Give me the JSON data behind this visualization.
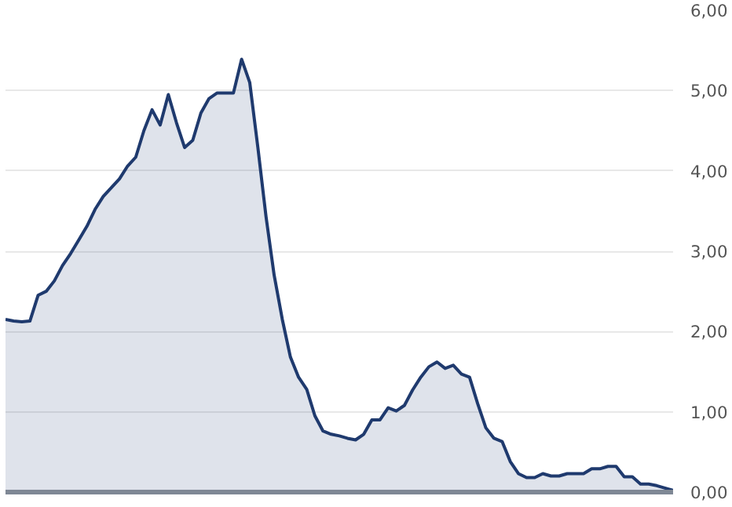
{
  "chart_data": {
    "type": "area",
    "categories": [
      null,
      null,
      null,
      null,
      null,
      null,
      null,
      null,
      null,
      null,
      null,
      null,
      null,
      null,
      null,
      null,
      null,
      null,
      null,
      null,
      null,
      null,
      null,
      null,
      null,
      null,
      null,
      null,
      null,
      null,
      null,
      null,
      null,
      null,
      null,
      null,
      null,
      null,
      null,
      null,
      null,
      null,
      null,
      null,
      null,
      null,
      null,
      null,
      null,
      null,
      null,
      null,
      null,
      null,
      null,
      null,
      null,
      null,
      null,
      null,
      null,
      null,
      null,
      null,
      null,
      null,
      null,
      null,
      null,
      null,
      null,
      null,
      null,
      null,
      null,
      null,
      null,
      null,
      null,
      null,
      null,
      null,
      null
    ],
    "series": [
      {
        "color": "#1f3a6e",
        "values": [
          2.15,
          2.13,
          2.12,
          2.13,
          2.45,
          2.5,
          2.63,
          2.82,
          2.97,
          3.14,
          3.31,
          3.52,
          3.68,
          3.79,
          3.9,
          4.06,
          4.17,
          4.5,
          4.76,
          4.57,
          4.95,
          4.6,
          4.29,
          4.38,
          4.72,
          4.9,
          4.97,
          4.97,
          4.97,
          5.39,
          5.1,
          4.29,
          3.43,
          2.7,
          2.15,
          1.68,
          1.43,
          1.28,
          0.95,
          0.76,
          0.72,
          0.7,
          0.67,
          0.65,
          0.72,
          0.9,
          0.9,
          1.05,
          1.01,
          1.08,
          1.27,
          1.43,
          1.56,
          1.62,
          1.54,
          1.58,
          1.47,
          1.43,
          1.1,
          0.8,
          0.67,
          0.63,
          0.38,
          0.23,
          0.18,
          0.18,
          0.23,
          0.2,
          0.2,
          0.23,
          0.23,
          0.23,
          0.29,
          0.29,
          0.32,
          0.32,
          0.19,
          0.19,
          0.1,
          0.1,
          0.08,
          0.05,
          0.02
        ]
      }
    ],
    "ylim": [
      0,
      6
    ],
    "yticks": [
      {
        "value": 0,
        "label": "0,00"
      },
      {
        "value": 1,
        "label": "1,00"
      },
      {
        "value": 2,
        "label": "2,00"
      },
      {
        "value": 3,
        "label": "3,00"
      },
      {
        "value": 4,
        "label": "4,00"
      },
      {
        "value": 5,
        "label": "5,00"
      },
      {
        "value": 6,
        "label": "6,00"
      }
    ],
    "grid": "y"
  }
}
